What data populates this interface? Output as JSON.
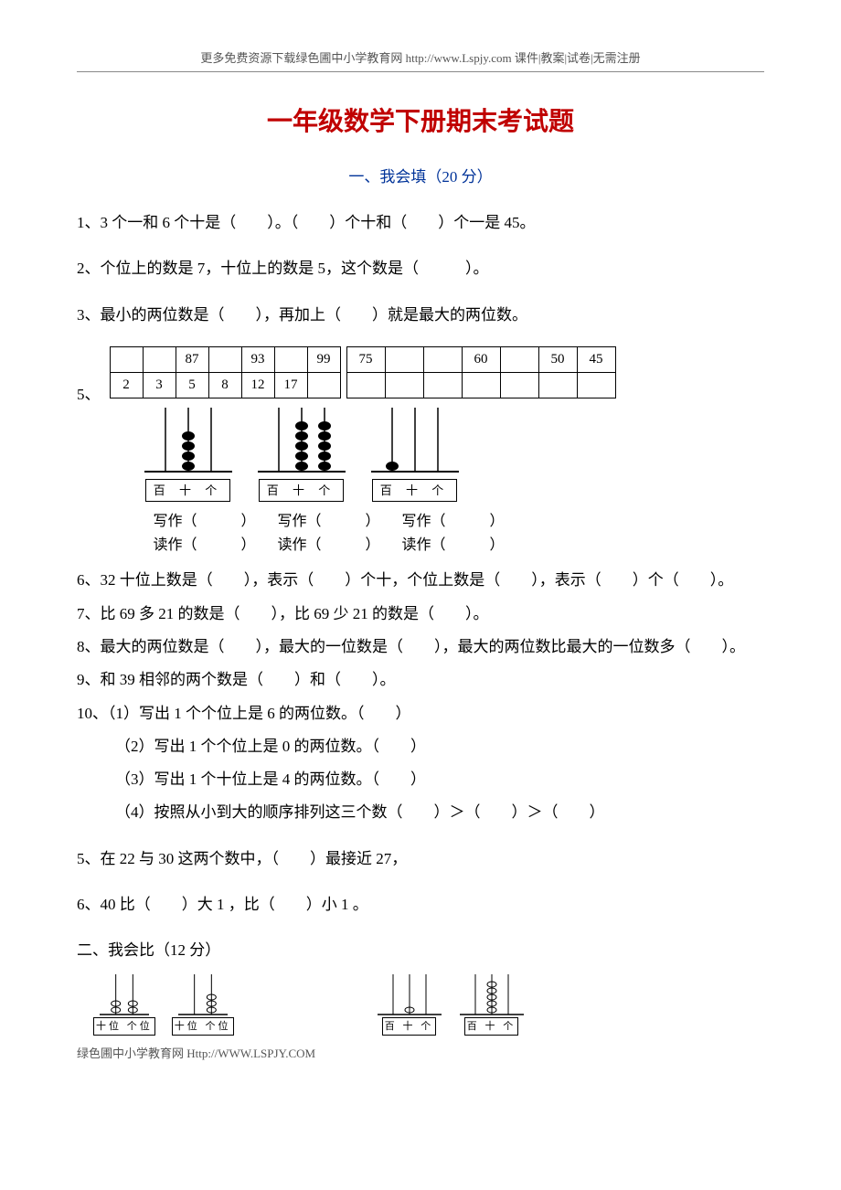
{
  "header_note": "更多免费资源下载绿色圃中小学教育网 http://www.Lspjy.com 课件|教案|试卷|无需注册",
  "title": "一年级数学下册期末考试题",
  "section1_header": "一、我会填（20 分）",
  "q1": "1、3 个一和 6 个十是（　　）。（　　）个十和（　　）个一是 45。",
  "q2": "2、个位上的数是 7，十位上的数是 5，这个数是（　　　）。",
  "q3": "3、最小的两位数是（　　），再加上（　　）就是最大的两位数。",
  "q5_label": "5、",
  "table1": {
    "row1": [
      "",
      "",
      "87",
      "",
      "93",
      "",
      "99"
    ],
    "row2": [
      "2",
      "3",
      "5",
      "8",
      "12",
      "17",
      ""
    ]
  },
  "table2": {
    "row1": [
      "75",
      "",
      "",
      "60",
      "",
      "50",
      "45"
    ],
    "row2": [
      "",
      "",
      "",
      "",
      "",
      "",
      ""
    ]
  },
  "abacus": [
    {
      "place": "百 十 个",
      "beads": [
        0,
        4,
        0
      ],
      "colors": [
        "#000000",
        "#000000",
        "#000000"
      ]
    },
    {
      "place": "百 十 个",
      "beads": [
        0,
        5,
        5
      ],
      "colors": [
        "#000000",
        "#000000",
        "#000000"
      ]
    },
    {
      "place": "百 十 个",
      "beads": [
        1,
        0,
        0
      ],
      "colors": [
        "#000000",
        "#000000",
        "#000000"
      ]
    }
  ],
  "write_read": [
    {
      "w": "写作（　　　）",
      "r": "读作（　　　）"
    },
    {
      "w": "写作（　　　）",
      "r": "读作（　　　）"
    },
    {
      "w": "写作（　　　）",
      "r": "读作（　　　）"
    }
  ],
  "q6": "6、32 十位上数是（　　），表示（　　）个十，个位上数是（　　），表示（　　）个（　　）。",
  "q7": "7、比 69 多 21 的数是（　　），比 69 少 21 的数是（　　）。",
  "q8": "8、最大的两位数是（　　），最大的一位数是（　　），最大的两位数比最大的一位数多（　　）。",
  "q9": "9、和 39 相邻的两个数是（　　）和（　　）。",
  "q10_1": "10、（1）写出 1 个个位上是 6 的两位数。（　　）",
  "q10_2": "（2）写出 1 个个位上是 0 的两位数。（　　）",
  "q10_3": "（3）写出 1 个十位上是 4 的两位数。（　　）",
  "q10_4": "（4）按照从小到大的顺序排列这三个数（　　）＞（　　）＞（　　）",
  "q5b": "5、在 22 与 30 这两个数中，（　　）最接近 27，",
  "q6b": " 6、40 比（　　）大 1 ，比（　　）小 1 。",
  "section2_header": "二、我会比（12 分）",
  "small_abacus": [
    {
      "place": "十位 个位",
      "beads": [
        2,
        2
      ]
    },
    {
      "place": "十位 个位",
      "beads": [
        0,
        3
      ]
    },
    {
      "place": "百 十 个",
      "beads": [
        0,
        1,
        0
      ]
    },
    {
      "place": "百 十 个",
      "beads": [
        0,
        5,
        0
      ]
    }
  ],
  "footer_note": "绿色圃中小学教育网 Http://WWW.LSPJY.COM",
  "colors": {
    "title": "#c00000",
    "section": "#003399",
    "text": "#000000",
    "header_text": "#555555",
    "background": "#ffffff",
    "border": "#000000"
  }
}
